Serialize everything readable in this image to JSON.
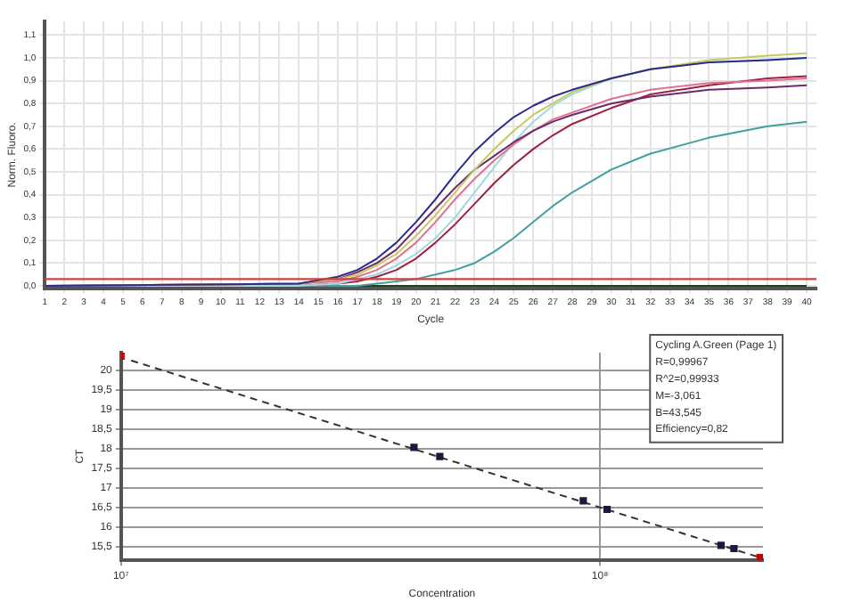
{
  "chart_data": [
    {
      "type": "line",
      "xlabel": "Cycle",
      "ylabel": "Norm. Fluoro.",
      "x": [
        1,
        14,
        16,
        17,
        18,
        19,
        20,
        21,
        22,
        23,
        24,
        25,
        26,
        27,
        28,
        30,
        32,
        35,
        38,
        40
      ],
      "series": [
        {
          "color": "#2b2b8c",
          "values": [
            0,
            0.01,
            0.04,
            0.07,
            0.12,
            0.19,
            0.28,
            0.38,
            0.49,
            0.59,
            0.67,
            0.74,
            0.79,
            0.83,
            0.86,
            0.91,
            0.95,
            0.98,
            0.99,
            1.0
          ]
        },
        {
          "color": "#c8c860",
          "values": [
            0,
            0.01,
            0.03,
            0.05,
            0.09,
            0.14,
            0.22,
            0.31,
            0.41,
            0.51,
            0.6,
            0.68,
            0.75,
            0.8,
            0.85,
            0.91,
            0.95,
            0.99,
            1.01,
            1.02
          ]
        },
        {
          "color": "#6b2b6b",
          "values": [
            0,
            0.01,
            0.03,
            0.06,
            0.1,
            0.16,
            0.25,
            0.34,
            0.43,
            0.51,
            0.57,
            0.63,
            0.68,
            0.72,
            0.75,
            0.8,
            0.83,
            0.86,
            0.87,
            0.88
          ]
        },
        {
          "color": "#e07090",
          "values": [
            0,
            0.01,
            0.02,
            0.04,
            0.07,
            0.12,
            0.19,
            0.28,
            0.38,
            0.47,
            0.55,
            0.62,
            0.68,
            0.73,
            0.76,
            0.82,
            0.86,
            0.89,
            0.9,
            0.91
          ]
        },
        {
          "color": "#a0d8e0",
          "values": [
            0,
            0,
            0.01,
            0.03,
            0.05,
            0.09,
            0.14,
            0.21,
            0.3,
            0.41,
            0.52,
            0.63,
            0.72,
            0.79,
            0.84,
            0.91,
            0.95,
            0.98,
            0.99,
            1.0
          ]
        },
        {
          "color": "#a02040",
          "values": [
            0,
            0,
            0.01,
            0.02,
            0.04,
            0.07,
            0.12,
            0.19,
            0.27,
            0.36,
            0.45,
            0.53,
            0.6,
            0.66,
            0.71,
            0.78,
            0.84,
            0.88,
            0.91,
            0.92
          ]
        },
        {
          "color": "#40a0a0",
          "values": [
            0,
            0,
            0,
            0,
            0.01,
            0.02,
            0.03,
            0.05,
            0.07,
            0.1,
            0.15,
            0.21,
            0.28,
            0.35,
            0.41,
            0.51,
            0.58,
            0.65,
            0.7,
            0.72
          ]
        },
        {
          "color": "#204020",
          "values": [
            0,
            0,
            0,
            0,
            0,
            0,
            0,
            0,
            0,
            0,
            0,
            0,
            0,
            0,
            0,
            0,
            0,
            0,
            0,
            0
          ]
        }
      ],
      "xlim": [
        1,
        40.5
      ],
      "xticks": [
        1,
        2,
        3,
        4,
        5,
        6,
        7,
        8,
        9,
        10,
        11,
        12,
        13,
        14,
        15,
        16,
        17,
        18,
        19,
        20,
        21,
        22,
        23,
        24,
        25,
        26,
        27,
        28,
        29,
        30,
        31,
        32,
        33,
        34,
        35,
        36,
        37,
        38,
        39,
        40
      ],
      "ylim": [
        -0.01,
        1.16
      ],
      "yticks": [
        {
          "value": 0,
          "label": "0,0"
        },
        {
          "value": 0.1,
          "label": "0,1"
        },
        {
          "value": 0.2,
          "label": "0,2"
        },
        {
          "value": 0.3,
          "label": "0,3"
        },
        {
          "value": 0.4,
          "label": "0,4"
        },
        {
          "value": 0.5,
          "label": "0,5"
        },
        {
          "value": 0.6,
          "label": "0,6"
        },
        {
          "value": 0.7,
          "label": "0,7"
        },
        {
          "value": 0.8,
          "label": "0,8"
        },
        {
          "value": 0.9,
          "label": "0,9"
        },
        {
          "value": 1,
          "label": "1,0"
        },
        {
          "value": 1.1,
          "label": "1,1"
        }
      ],
      "ref_lines": [
        {
          "axis": "y",
          "value": 0.03,
          "color": "#d04040"
        }
      ],
      "grid": true,
      "marker": "none",
      "line_style": "solid"
    },
    {
      "type": "scatter",
      "xlabel": "Concentration",
      "ylabel": "CT",
      "log": "x",
      "series": [
        {
          "type": "scatter",
          "color": "#1a1a40",
          "colors": [
            "#cc0000",
            "#1a1a40",
            "#1a1a40",
            "#1a1a40",
            "#1a1a40",
            "#1a1a40",
            "#1a1a40",
            "#cc0000"
          ],
          "x": [
            10000000,
            40900000,
            46300000,
            92300000,
            103500000,
            179000000,
            190500000,
            216000000
          ],
          "values": [
            20.36,
            18.03,
            17.8,
            16.67,
            16.45,
            15.53,
            15.45,
            15.22
          ],
          "marker": "square"
        },
        {
          "type": "line",
          "color": "#333333",
          "x": [
            10500000,
            216000000
          ],
          "values": [
            20.25,
            15.22
          ],
          "marker": "none",
          "line_style": "dashed"
        }
      ],
      "xlim": [
        10000000,
        219000000
      ],
      "xticks": [
        {
          "value": 10000000,
          "label": "10⁷"
        },
        {
          "value": 100000000,
          "label": "10⁸"
        }
      ],
      "ylim": [
        15.15,
        20.45
      ],
      "yticks": [
        {
          "value": 15.5,
          "label": "15,5"
        },
        16,
        {
          "value": 16.5,
          "label": "16,5"
        },
        17,
        {
          "value": 17.5,
          "label": "17,5"
        },
        18,
        {
          "value": 18.5,
          "label": "18,5"
        },
        19,
        {
          "value": 19.5,
          "label": "19,5"
        },
        20
      ],
      "annotations": [
        "Cycling A.Green (Page 1)",
        "R=0,99967",
        "R^2=0,99933",
        "M=-3,061",
        "B=43,545",
        "Efficiency=0,82"
      ],
      "grid": true
    }
  ]
}
